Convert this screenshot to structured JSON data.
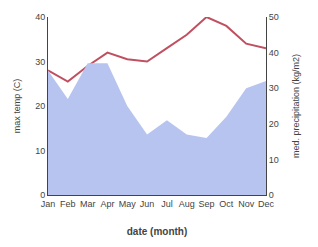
{
  "chart_data": {
    "type": "line",
    "xlabel": "date (month)",
    "ylabel": "max temp (C)",
    "y2label": "med. precipitation (kg/m2)",
    "categories": [
      "Jan",
      "Feb",
      "Mar",
      "Apr",
      "May",
      "Jun",
      "Jul",
      "Aug",
      "Sep",
      "Oct",
      "Nov",
      "Dec"
    ],
    "series": [
      {
        "type": "area",
        "axis": "y2",
        "color": "#b8c4f0",
        "values": [
          35,
          27,
          37,
          37,
          25,
          17,
          21,
          17,
          16,
          22,
          30,
          32
        ]
      },
      {
        "type": "line",
        "color": "#c05060",
        "values": [
          28,
          25.5,
          29,
          32,
          30.5,
          30,
          33,
          36,
          40,
          38,
          34,
          33
        ]
      }
    ],
    "ylim": [
      0,
      40
    ],
    "yticks": [
      0,
      10,
      20,
      30,
      40
    ],
    "y2lim": [
      0,
      50
    ],
    "y2ticks": [
      0,
      10,
      20,
      30,
      40,
      50
    ],
    "grid": false
  }
}
